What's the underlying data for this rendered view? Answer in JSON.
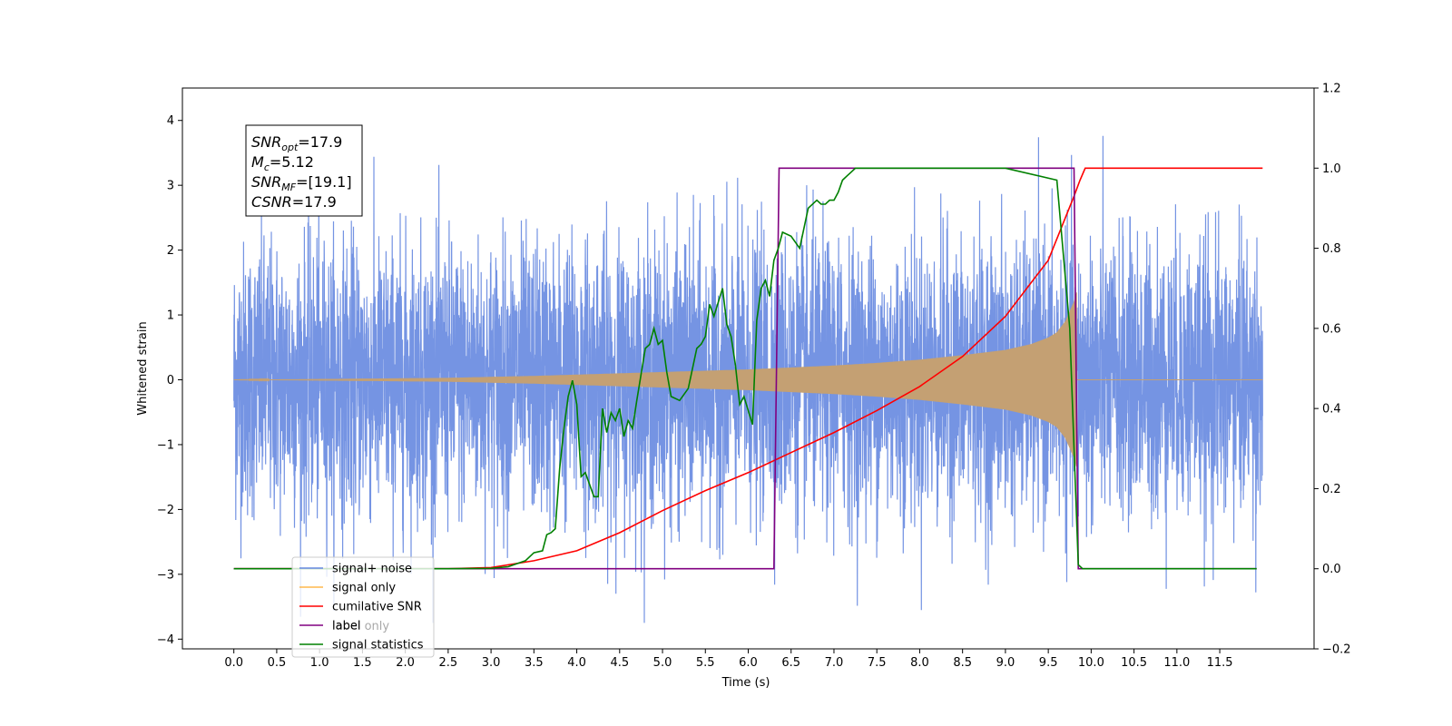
{
  "chart_data": {
    "type": "line",
    "xlabel": "Time (s)",
    "ylabel": "Whitened strain",
    "xlim": [
      -0.6,
      12.6
    ],
    "ylim_left": [
      -4.15,
      4.5
    ],
    "ylim_right": [
      -0.2,
      1.2
    ],
    "x_ticks": [
      "0.0",
      "0.5",
      "1.0",
      "1.5",
      "2.0",
      "2.5",
      "3.0",
      "3.5",
      "4.0",
      "4.5",
      "5.0",
      "5.5",
      "6.0",
      "6.5",
      "7.0",
      "7.5",
      "8.0",
      "8.5",
      "9.0",
      "9.5",
      "10.0",
      "10.5",
      "11.0",
      "11.5"
    ],
    "left_y_ticks": [
      "4",
      "3",
      "2",
      "1",
      "0",
      "−1",
      "−2",
      "−3",
      "−4"
    ],
    "right_y_ticks": [
      "1.2",
      "1.0",
      "0.8",
      "0.6",
      "0.4",
      "0.2",
      "0.0",
      "−0.2"
    ],
    "annotation": {
      "lines": [
        {
          "base": "SNR",
          "sub": "opt",
          "value": "=17.9"
        },
        {
          "base": "M",
          "sub": "c",
          "value": "=5.12"
        },
        {
          "base": "SNR",
          "sub": "MF",
          "value": "=[19.1]"
        },
        {
          "base": "CSNR",
          "sub": "",
          "value": "=17.9"
        }
      ]
    },
    "legend": {
      "placement": "lower-left",
      "entries": [
        {
          "label": "signal+ noise",
          "color": "#6688e0"
        },
        {
          "label": "signal only",
          "color": "#ffb84d"
        },
        {
          "label": "cumilative SNR",
          "color": "#ff0000"
        },
        {
          "label": "label",
          "color": "#800080"
        },
        {
          "label": "signal statistics",
          "color": "#008000"
        }
      ],
      "hidden_label": "label only"
    },
    "series": [
      {
        "name": "signal+ noise",
        "axis": "left",
        "color": "#6688e0",
        "description_values": {
          "x_range": [
            0.0,
            12.0
          ],
          "noise_std": 1.0,
          "approx_peak": 4.1
        }
      },
      {
        "name": "signal only",
        "axis": "left",
        "color": "#ffb84d",
        "envelope": {
          "x": [
            0.0,
            2.5,
            3.5,
            4.0,
            5.0,
            6.0,
            6.5,
            7.0,
            7.5,
            8.0,
            8.5,
            9.0,
            9.3,
            9.5,
            9.6,
            9.7,
            9.75,
            9.8,
            9.83
          ],
          "amplitude": [
            0.0,
            0.03,
            0.06,
            0.08,
            0.12,
            0.16,
            0.19,
            0.22,
            0.26,
            0.31,
            0.38,
            0.46,
            0.55,
            0.65,
            0.73,
            0.9,
            1.05,
            1.2,
            1.35
          ]
        }
      },
      {
        "name": "cumilative SNR",
        "axis": "right",
        "color": "#ff0000",
        "x": [
          0.0,
          2.5,
          3.0,
          3.5,
          4.0,
          4.5,
          5.0,
          5.5,
          6.0,
          6.5,
          7.0,
          7.5,
          8.0,
          8.5,
          9.0,
          9.5,
          9.8,
          9.87,
          9.93,
          11.5,
          12.0
        ],
        "y": [
          0.0,
          0.0,
          0.003,
          0.02,
          0.045,
          0.09,
          0.145,
          0.195,
          0.24,
          0.29,
          0.34,
          0.395,
          0.455,
          0.53,
          0.63,
          0.77,
          0.93,
          0.97,
          1.0,
          1.0,
          1.0
        ]
      },
      {
        "name": "label",
        "axis": "right",
        "color": "#800080",
        "x": [
          0.0,
          6.3,
          6.36,
          9.8,
          9.85,
          11.0,
          11.93
        ],
        "y": [
          0.0,
          0.0,
          1.0,
          1.0,
          0.0,
          0.0,
          0.0
        ]
      },
      {
        "name": "signal statistics",
        "axis": "right",
        "color": "#008000",
        "x": [
          0.0,
          2.5,
          3.0,
          3.2,
          3.4,
          3.5,
          3.6,
          3.65,
          3.7,
          3.75,
          3.8,
          3.85,
          3.9,
          3.95,
          4.0,
          4.05,
          4.1,
          4.2,
          4.25,
          4.3,
          4.35,
          4.4,
          4.45,
          4.5,
          4.55,
          4.6,
          4.65,
          4.7,
          4.8,
          4.85,
          4.9,
          4.95,
          5.0,
          5.05,
          5.1,
          5.2,
          5.3,
          5.4,
          5.45,
          5.5,
          5.55,
          5.6,
          5.7,
          5.75,
          5.8,
          5.85,
          5.9,
          5.95,
          6.05,
          6.1,
          6.15,
          6.2,
          6.25,
          6.3,
          6.35,
          6.4,
          6.5,
          6.6,
          6.7,
          6.8,
          6.85,
          6.9,
          6.95,
          7.0,
          7.05,
          7.1,
          7.15,
          7.2,
          7.25,
          7.3,
          7.35,
          7.4,
          7.5,
          7.6,
          7.8,
          9.0,
          9.6,
          9.75,
          9.8,
          9.85,
          9.9,
          9.95,
          10.0,
          10.5,
          11.0,
          11.5,
          11.93
        ],
        "y": [
          0.0,
          0.0,
          0.001,
          0.005,
          0.02,
          0.04,
          0.045,
          0.085,
          0.09,
          0.1,
          0.25,
          0.35,
          0.43,
          0.47,
          0.41,
          0.23,
          0.24,
          0.18,
          0.18,
          0.4,
          0.34,
          0.39,
          0.37,
          0.4,
          0.33,
          0.37,
          0.35,
          0.42,
          0.55,
          0.56,
          0.6,
          0.56,
          0.57,
          0.49,
          0.43,
          0.42,
          0.45,
          0.55,
          0.56,
          0.58,
          0.66,
          0.63,
          0.7,
          0.61,
          0.58,
          0.51,
          0.41,
          0.43,
          0.36,
          0.62,
          0.7,
          0.72,
          0.68,
          0.77,
          0.8,
          0.84,
          0.83,
          0.8,
          0.9,
          0.92,
          0.91,
          0.91,
          0.92,
          0.92,
          0.94,
          0.97,
          0.98,
          0.99,
          1.0,
          1.0,
          1.0,
          1.0,
          1.0,
          1.0,
          1.0,
          1.0,
          0.97,
          0.6,
          0.3,
          0.01,
          0.0,
          0.0,
          0.0,
          0.0,
          0.0,
          0.0,
          0.0
        ]
      }
    ]
  }
}
